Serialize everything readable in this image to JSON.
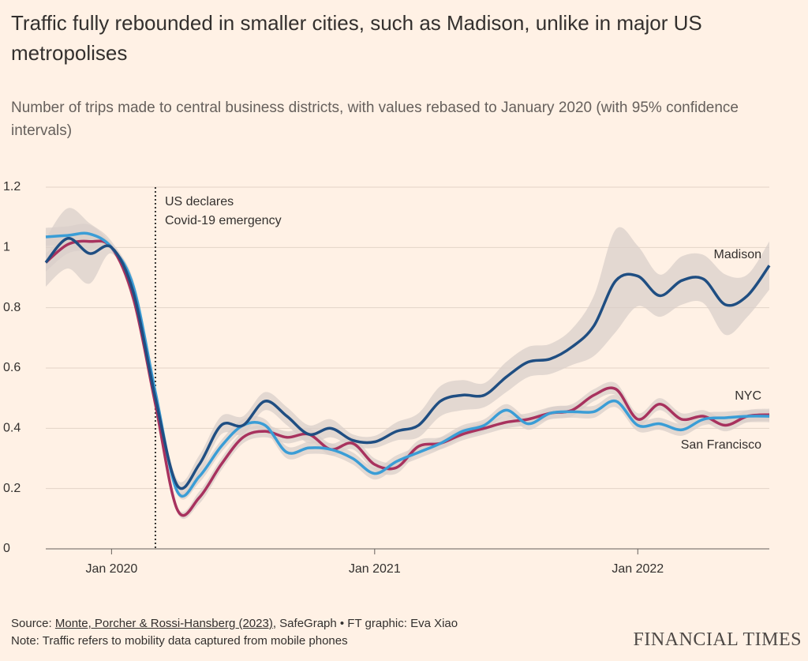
{
  "chart_data": {
    "type": "line",
    "title": "Traffic fully rebounded in smaller cities, such as Madison, unlike in major US metropolises",
    "subtitle": "Number of trips made to central business districts, with values rebased to January 2020 (with 95% confidence intervals)",
    "x": [
      "2019-10",
      "2019-11",
      "2019-12",
      "2020-01",
      "2020-02",
      "2020-03",
      "2020-04",
      "2020-05",
      "2020-06",
      "2020-07",
      "2020-08",
      "2020-09",
      "2020-10",
      "2020-11",
      "2020-12",
      "2021-01",
      "2021-02",
      "2021-03",
      "2021-04",
      "2021-05",
      "2021-06",
      "2021-07",
      "2021-08",
      "2021-09",
      "2021-10",
      "2021-11",
      "2021-12",
      "2022-01",
      "2022-02",
      "2022-03",
      "2022-04",
      "2022-05",
      "2022-06",
      "2022-07"
    ],
    "series": [
      {
        "name": "Madison",
        "color": "#1f4e82",
        "values": [
          0.95,
          1.03,
          0.98,
          1.0,
          0.85,
          0.5,
          0.21,
          0.28,
          0.41,
          0.41,
          0.49,
          0.44,
          0.38,
          0.4,
          0.36,
          0.355,
          0.39,
          0.41,
          0.49,
          0.51,
          0.51,
          0.57,
          0.62,
          0.63,
          0.67,
          0.74,
          0.89,
          0.905,
          0.84,
          0.89,
          0.895,
          0.81,
          0.84,
          0.94
        ],
        "ci": [
          0.08,
          0.1,
          0.1,
          0.02,
          0.03,
          0.03,
          0.02,
          0.03,
          0.03,
          0.03,
          0.03,
          0.03,
          0.03,
          0.03,
          0.02,
          0.02,
          0.03,
          0.04,
          0.05,
          0.05,
          0.04,
          0.05,
          0.05,
          0.05,
          0.06,
          0.1,
          0.17,
          0.1,
          0.07,
          0.08,
          0.08,
          0.1,
          0.07,
          0.08
        ]
      },
      {
        "name": "NYC",
        "color": "#a8325e",
        "values": [
          0.95,
          1.01,
          1.02,
          1.0,
          0.83,
          0.48,
          0.13,
          0.17,
          0.28,
          0.37,
          0.39,
          0.37,
          0.38,
          0.33,
          0.35,
          0.28,
          0.27,
          0.34,
          0.35,
          0.38,
          0.4,
          0.42,
          0.43,
          0.45,
          0.46,
          0.51,
          0.53,
          0.43,
          0.48,
          0.43,
          0.44,
          0.41,
          0.44,
          0.445
        ],
        "ci": [
          0.03,
          0.03,
          0.03,
          0.01,
          0.02,
          0.02,
          0.01,
          0.02,
          0.02,
          0.02,
          0.02,
          0.02,
          0.02,
          0.02,
          0.02,
          0.02,
          0.02,
          0.02,
          0.02,
          0.02,
          0.02,
          0.02,
          0.02,
          0.02,
          0.02,
          0.02,
          0.02,
          0.02,
          0.02,
          0.02,
          0.02,
          0.02,
          0.02,
          0.02
        ]
      },
      {
        "name": "San Francisco",
        "color": "#3a9dd6",
        "values": [
          1.035,
          1.04,
          1.045,
          1.0,
          0.87,
          0.52,
          0.19,
          0.24,
          0.34,
          0.41,
          0.41,
          0.32,
          0.335,
          0.33,
          0.3,
          0.25,
          0.29,
          0.32,
          0.35,
          0.39,
          0.41,
          0.46,
          0.415,
          0.45,
          0.455,
          0.455,
          0.49,
          0.41,
          0.415,
          0.395,
          0.43,
          0.435,
          0.44,
          0.44
        ],
        "ci": [
          0.03,
          0.03,
          0.03,
          0.01,
          0.02,
          0.02,
          0.01,
          0.02,
          0.02,
          0.02,
          0.02,
          0.02,
          0.02,
          0.02,
          0.02,
          0.02,
          0.02,
          0.02,
          0.02,
          0.02,
          0.02,
          0.02,
          0.02,
          0.02,
          0.02,
          0.02,
          0.02,
          0.02,
          0.02,
          0.02,
          0.02,
          0.02,
          0.02,
          0.02
        ]
      }
    ],
    "xlim": [
      "2019-10",
      "2022-07"
    ],
    "xticks": [
      {
        "value": "2020-01",
        "label": "Jan 2020"
      },
      {
        "value": "2021-01",
        "label": "Jan 2021"
      },
      {
        "value": "2022-01",
        "label": "Jan 2022"
      }
    ],
    "ylim": [
      0,
      1.2
    ],
    "yticks": [
      0,
      0.2,
      0.4,
      0.6,
      0.8,
      1,
      1.2
    ],
    "grid": true,
    "annotation": {
      "x": "2020-03",
      "lines": [
        "US declares",
        "Covid-19 emergency"
      ]
    },
    "source": {
      "prefix": "Source: ",
      "link": "Monte, Porcher & Rossi-Hansberg (2023)",
      "rest": ", SafeGraph • FT graphic: Eva Xiao"
    },
    "note": "Note: Traffic refers to mobility data captured from mobile phones",
    "brand": "FINANCIAL TIMES"
  }
}
